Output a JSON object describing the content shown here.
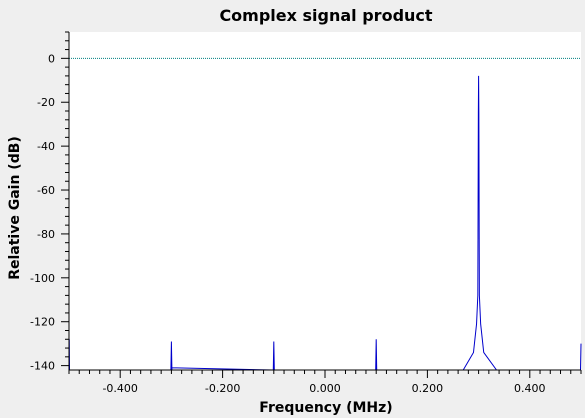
{
  "chart_data": {
    "type": "line",
    "title": "Complex signal product",
    "xlabel": "Frequency (MHz)",
    "ylabel": "Relative Gain (dB)",
    "xlim": [
      -0.5,
      0.5
    ],
    "ylim": [
      -142,
      12
    ],
    "x_ticks": [
      -0.4,
      -0.2,
      0.0,
      0.2,
      0.4
    ],
    "x_tick_labels": [
      "-0.400",
      "-0.200",
      "0.000",
      "0.200",
      "0.400"
    ],
    "y_ticks": [
      0,
      -20,
      -40,
      -60,
      -80,
      -100,
      -120,
      -140
    ],
    "y_tick_labels": [
      "0",
      "-20",
      "-40",
      "-60",
      "-80",
      "-100",
      "-120",
      "-140"
    ],
    "grid": false,
    "reference_line": {
      "y": 0,
      "style": "dotted",
      "color": "#008080"
    },
    "series": [
      {
        "color": "#0000cc",
        "points": [
          [
            -0.5,
            -142
          ],
          [
            -0.4995,
            -128
          ],
          [
            -0.499,
            -142
          ],
          [
            -0.301,
            -142
          ],
          [
            -0.3,
            -129
          ],
          [
            -0.299,
            -142
          ],
          [
            -0.3,
            -141
          ],
          [
            -0.101,
            -142
          ],
          [
            -0.1,
            -129
          ],
          [
            -0.099,
            -142
          ],
          [
            0.099,
            -142
          ],
          [
            0.1,
            -128
          ],
          [
            0.101,
            -142
          ],
          [
            0.27,
            -142
          ],
          [
            0.29,
            -134
          ],
          [
            0.296,
            -121
          ],
          [
            0.2985,
            -108
          ],
          [
            0.2995,
            -25
          ],
          [
            0.3,
            -8
          ],
          [
            0.3005,
            -25
          ],
          [
            0.3015,
            -108
          ],
          [
            0.304,
            -121
          ],
          [
            0.31,
            -134
          ],
          [
            0.335,
            -142
          ],
          [
            0.499,
            -142
          ],
          [
            0.5,
            -130
          ]
        ]
      }
    ]
  },
  "colors": {
    "background": "#efefef",
    "plot_area": "#ffffff",
    "trace": "#0000cc",
    "reference_line": "#008080"
  }
}
